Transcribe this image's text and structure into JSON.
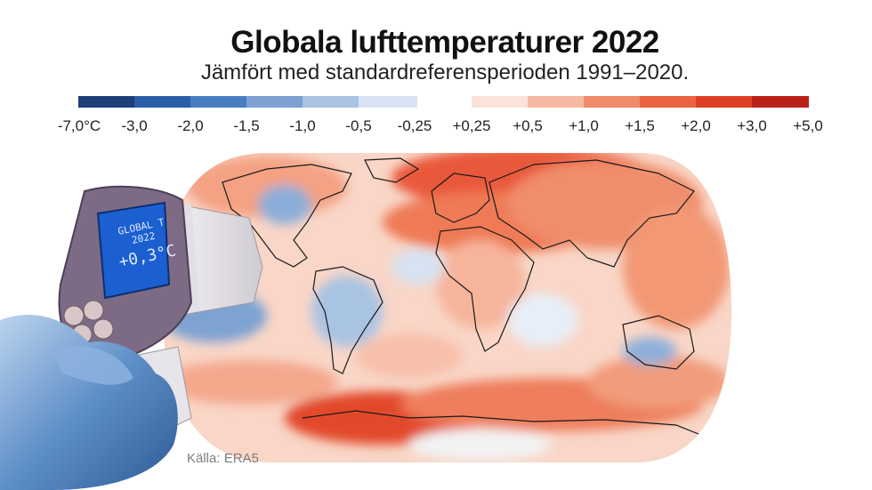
{
  "header": {
    "title": "Globala lufttemperaturer 2022",
    "subtitle": "Jämfört med standardreferensperioden 1991–2020."
  },
  "legend": {
    "cool_colors": [
      "#1d3f7a",
      "#2c5ea6",
      "#4a7dc0",
      "#7ca1d2",
      "#a9c3e3",
      "#d7e3f2"
    ],
    "warm_colors": [
      "#fbe3d9",
      "#f6b8a0",
      "#f08a69",
      "#ea6440",
      "#df3f22",
      "#b9221a"
    ],
    "labels": [
      "-7,0°C",
      "-3,0",
      "-2,0",
      "-1,5",
      "-1,0",
      "-0,5",
      "-0,25",
      "+0,25",
      "+0,5",
      "+1,0",
      "+1,5",
      "+2,0",
      "+3,0",
      "+5,0"
    ]
  },
  "thermometer": {
    "line1": "GLOBAL T",
    "line2": "2022",
    "reading": "+0,3°C"
  },
  "source": "Källa: ERA5"
}
